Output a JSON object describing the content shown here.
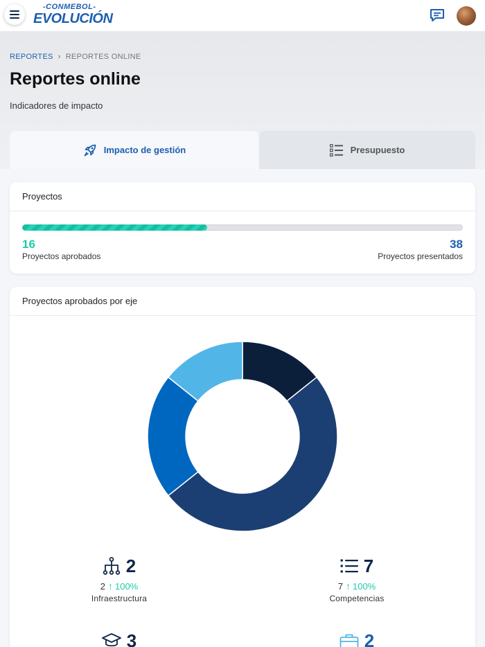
{
  "header": {
    "logo_top": "-CONMEBOL-",
    "logo_main": "EVOLUCIÓN"
  },
  "breadcrumb": {
    "root": "REPORTES",
    "current": "REPORTES ONLINE"
  },
  "page": {
    "title": "Reportes online",
    "subtitle": "Indicadores de impacto"
  },
  "tabs": [
    {
      "label": "Impacto de gestión",
      "icon": "rocket-icon",
      "active": true
    },
    {
      "label": "Presupuesto",
      "icon": "list-icon",
      "active": false
    }
  ],
  "projects": {
    "title": "Proyectos",
    "approved": "16",
    "approved_label": "Proyectos aprobados",
    "presented": "38",
    "presented_label": "Proyectos presentados",
    "progress_fraction": 0.42
  },
  "axes": {
    "title": "Proyectos aprobados por eje",
    "items": [
      {
        "name": "Infraestructura",
        "count": "2",
        "detail": "2",
        "pct": "100%",
        "icon": "hierarchy-icon"
      },
      {
        "name": "Competencias",
        "count": "7",
        "detail": "7",
        "pct": "100%",
        "icon": "list-icon"
      },
      {
        "name": "",
        "count": "3",
        "detail": "",
        "pct": "",
        "icon": "graduation-cap-icon"
      },
      {
        "name": "",
        "count": "2",
        "detail": "",
        "pct": "",
        "icon": "briefcase-icon"
      }
    ]
  },
  "chart_data": {
    "type": "pie",
    "donut": true,
    "values": [
      2,
      7,
      3,
      2
    ],
    "colors": [
      "#0b1f3b",
      "#1c3f73",
      "#0067c0",
      "#52b5e8"
    ]
  },
  "colors": {
    "accent_blue": "#1c5fb0",
    "accent_teal": "#1fcaa9"
  }
}
